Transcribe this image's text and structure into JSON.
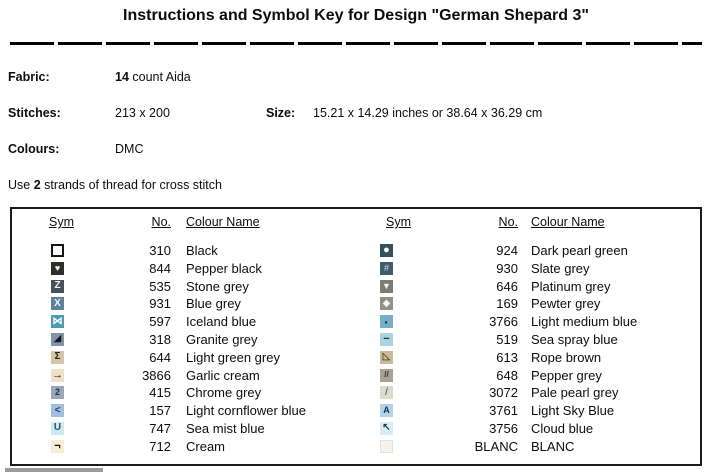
{
  "title": "Instructions and Symbol Key for Design \"German Shepard 3\"",
  "info": {
    "fabric": {
      "label": "Fabric:",
      "value_bold": "14",
      "value_rest": " count Aida"
    },
    "stitches": {
      "label": "Stitches:",
      "value": "213 x 200"
    },
    "size": {
      "label": "Size:",
      "value": "15.21 x 14.29 inches or 38.64 x 36.29 cm"
    },
    "colours": {
      "label": "Colours:",
      "value": "DMC"
    },
    "strands_note": {
      "prefix": "Use ",
      "bold": "2",
      "suffix": " strands of thread for cross stitch"
    }
  },
  "key_table": {
    "headers": {
      "sym": "Sym",
      "no": "No.",
      "name": "Colour Name"
    },
    "left_rows": [
      {
        "no": "310",
        "name": "Black",
        "symbol": {
          "icon": "open-square-icon",
          "glyph": "",
          "bg": "#ffffff",
          "fg": "#000000",
          "size": 10,
          "bold": false,
          "border": "2px solid #161616"
        }
      },
      {
        "no": "844",
        "name": "Pepper black",
        "symbol": {
          "icon": "heart-icon",
          "glyph": "♥",
          "bg": "#2f2e2b",
          "fg": "#ffffff",
          "size": 9,
          "bold": false
        }
      },
      {
        "no": "535",
        "name": "Stone grey",
        "symbol": {
          "icon": "letter-z-icon",
          "glyph": "Z",
          "bg": "#46525b",
          "fg": "#f4f4f4",
          "size": 10,
          "bold": true
        }
      },
      {
        "no": "931",
        "name": "Blue grey",
        "symbol": {
          "icon": "letter-x-icon",
          "glyph": "X",
          "bg": "#60819a",
          "fg": "#f4f6f8",
          "size": 10,
          "bold": true
        }
      },
      {
        "no": "597",
        "name": "Iceland blue",
        "symbol": {
          "icon": "bowtie-icon",
          "glyph": "⋈",
          "bg": "#4e9daf",
          "fg": "#ffffff",
          "size": 10,
          "bold": true
        }
      },
      {
        "no": "318",
        "name": "Granite grey",
        "symbol": {
          "icon": "lower-right-triangle-icon",
          "glyph": "◢",
          "bg": "#8294aa",
          "fg": "#17191d",
          "size": 10,
          "bold": false
        }
      },
      {
        "no": "644",
        "name": "Light green grey",
        "symbol": {
          "icon": "hourglass-icon",
          "glyph": "Σ",
          "bg": "#d3c7a5",
          "fg": "#26261f",
          "size": 10,
          "bold": true
        }
      },
      {
        "no": "3866",
        "name": "Garlic cream",
        "symbol": {
          "icon": "right-arrow-icon",
          "glyph": "→",
          "bg": "#efe1c5",
          "fg": "#161209",
          "size": 11,
          "bold": true
        }
      },
      {
        "no": "415",
        "name": "Chrome grey",
        "symbol": {
          "icon": "digit-2-icon",
          "glyph": "2",
          "bg": "#98a7bc",
          "fg": "#1c3046",
          "size": 9,
          "bold": true
        }
      },
      {
        "no": "157",
        "name": "Light cornflower blue",
        "symbol": {
          "icon": "less-than-icon",
          "glyph": "<",
          "bg": "#a4bee0",
          "fg": "#224060",
          "size": 10,
          "bold": true
        }
      },
      {
        "no": "747",
        "name": "Sea mist blue",
        "symbol": {
          "icon": "letter-u-icon",
          "glyph": "U",
          "bg": "#cdeaf2",
          "fg": "#1e5870",
          "size": 10,
          "bold": true
        }
      },
      {
        "no": "712",
        "name": "Cream",
        "symbol": {
          "icon": "not-sign-icon",
          "glyph": "¬",
          "bg": "#f6edd5",
          "fg": "#16120e",
          "size": 11,
          "bold": true
        }
      }
    ],
    "right_rows": [
      {
        "no": "924",
        "name": "Dark pearl green",
        "symbol": {
          "icon": "filled-circle-icon",
          "glyph": "●",
          "bg": "#34525c",
          "fg": "#ffffff",
          "size": 11,
          "bold": false
        }
      },
      {
        "no": "930",
        "name": "Slate grey",
        "symbol": {
          "icon": "sharp-sign-icon",
          "glyph": "#",
          "bg": "#415b6f",
          "fg": "#d3dbe1",
          "size": 9,
          "bold": false
        }
      },
      {
        "no": "646",
        "name": "Platinum grey",
        "symbol": {
          "icon": "down-triangle-icon",
          "glyph": "▼",
          "bg": "#7b7d73",
          "fg": "#f5f5f1",
          "size": 9,
          "bold": false
        }
      },
      {
        "no": "169",
        "name": "Pewter grey",
        "symbol": {
          "icon": "diamond-icon",
          "glyph": "◆",
          "bg": "#909085",
          "fg": "#f5f5ef",
          "size": 10,
          "bold": false
        }
      },
      {
        "no": "3766",
        "name": "Light medium blue",
        "symbol": {
          "icon": "dot-icon",
          "glyph": "·",
          "bg": "#76adc8",
          "fg": "#0f2531",
          "size": 14,
          "bold": true
        }
      },
      {
        "no": "519",
        "name": "Sea spray blue",
        "symbol": {
          "icon": "dash-icon",
          "glyph": "−",
          "bg": "#aad4e2",
          "fg": "#132f3b",
          "size": 11,
          "bold": true
        }
      },
      {
        "no": "613",
        "name": "Rope brown",
        "symbol": {
          "icon": "triangle-outline-icon",
          "glyph": "◺",
          "bg": "#cbba96",
          "fg": "#141009",
          "size": 10,
          "bold": false
        }
      },
      {
        "no": "648",
        "name": "Pepper grey",
        "symbol": {
          "icon": "double-slash-icon",
          "glyph": "//",
          "bg": "#a8a295",
          "fg": "#2f2c25",
          "size": 8,
          "bold": true
        }
      },
      {
        "no": "3072",
        "name": "Pale pearl grey",
        "symbol": {
          "icon": "slash-icon",
          "glyph": "/",
          "bg": "#dbdbd0",
          "fg": "#42423a",
          "size": 10,
          "bold": false
        }
      },
      {
        "no": "3761",
        "name": "Light Sky Blue",
        "symbol": {
          "icon": "letter-a-icon",
          "glyph": "A",
          "bg": "#afd3e9",
          "fg": "#17344d",
          "size": 9,
          "bold": true
        }
      },
      {
        "no": "3756",
        "name": "Cloud blue",
        "symbol": {
          "icon": "up-left-arrow-icon",
          "glyph": "↖",
          "bg": "#daedf5",
          "fg": "#1b3b51",
          "size": 10,
          "bold": true
        }
      },
      {
        "no": "BLANC",
        "name": "BLANC",
        "symbol": {
          "icon": "blank-square-icon",
          "glyph": "",
          "bg": "#f4f4ef",
          "fg": "#000000",
          "size": 10,
          "bold": false,
          "border": "1px solid #e3e3db"
        }
      }
    ]
  }
}
